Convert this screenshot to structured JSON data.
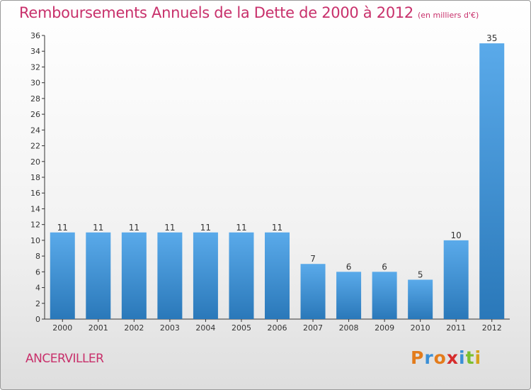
{
  "header": {
    "title": "Remboursements Annuels de la Dette de 2000 à 2012",
    "subtitle": "(en milliers d'€)"
  },
  "footer": {
    "place": "ANCERVILLER",
    "logo_letters": [
      "P",
      "r",
      "o",
      "x",
      "i",
      "t",
      "i"
    ],
    "logo_colors": [
      "#e37c1c",
      "#3a8fd6",
      "#e37c1c",
      "#d62c2c",
      "#3a8fd6",
      "#7bbf2f",
      "#d6a31c"
    ]
  },
  "colors": {
    "title": "#c8306b",
    "bar_top": "#5aaaea",
    "bar_bottom": "#2a78b9",
    "axis": "#333333"
  },
  "chart_data": {
    "type": "bar",
    "title": "Remboursements Annuels de la Dette de 2000 à 2012",
    "subtitle": "(en milliers d'€)",
    "categories": [
      "2000",
      "2001",
      "2002",
      "2003",
      "2004",
      "2005",
      "2006",
      "2007",
      "2008",
      "2009",
      "2010",
      "2011",
      "2012"
    ],
    "values": [
      11,
      11,
      11,
      11,
      11,
      11,
      11,
      7,
      6,
      6,
      5,
      10,
      35
    ],
    "ylim": [
      0,
      36
    ],
    "ytick_step": 2,
    "xlabel": "",
    "ylabel": "",
    "grid": false,
    "data_labels": true
  }
}
